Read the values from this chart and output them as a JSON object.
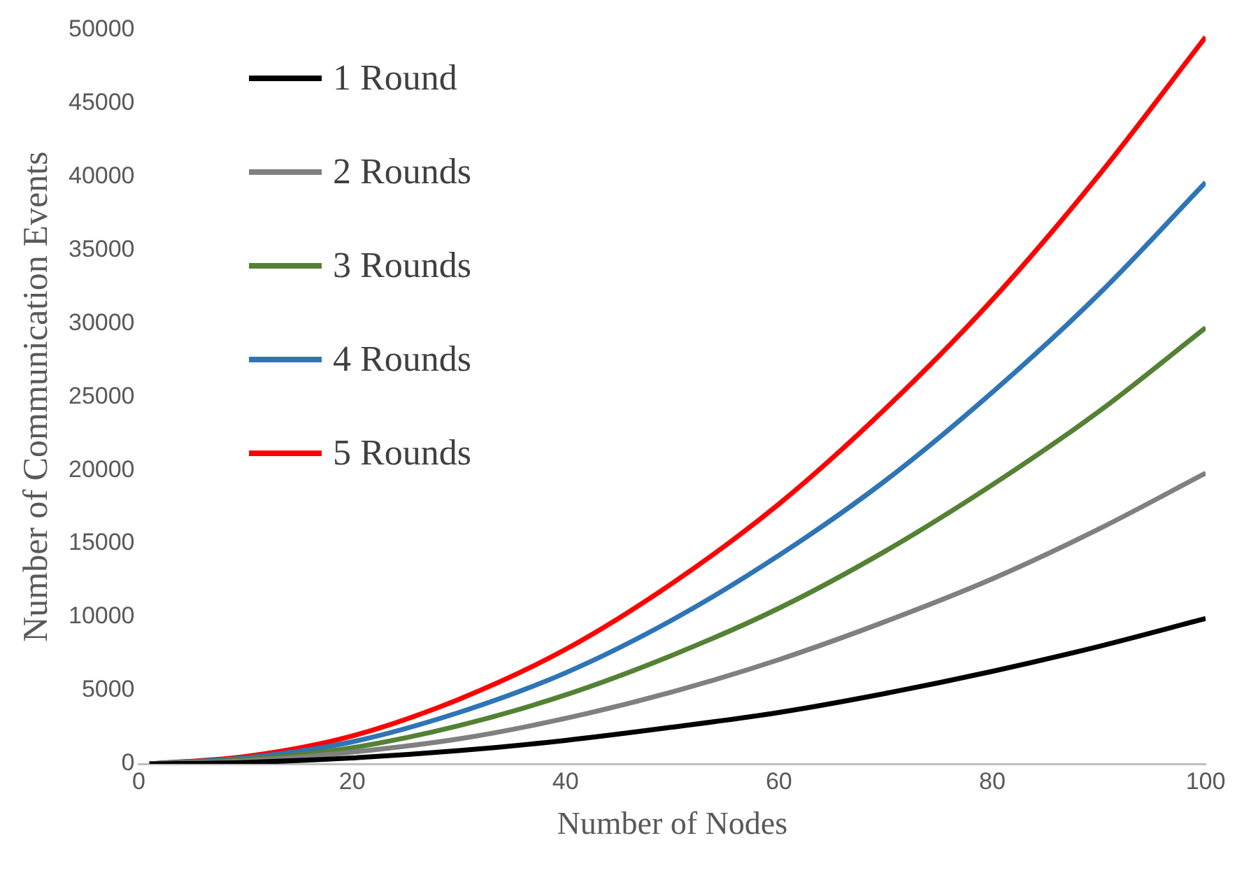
{
  "chart_data": {
    "type": "line",
    "xlabel": "Number of Nodes",
    "ylabel": "Number of Communication Events",
    "x": [
      1,
      10,
      20,
      30,
      40,
      50,
      60,
      70,
      80,
      90,
      100
    ],
    "series": [
      {
        "name": "1 Round",
        "color": "#000000",
        "values": [
          0,
          100,
          400,
          900,
          1600,
          2500,
          3500,
          4800,
          6300,
          8000,
          9900
        ]
      },
      {
        "name": "2 Rounds",
        "color": "#808080",
        "values": [
          0,
          200,
          800,
          1700,
          3100,
          4900,
          7100,
          9700,
          12600,
          16000,
          19800
        ]
      },
      {
        "name": "3 Rounds",
        "color": "#548235",
        "values": [
          0,
          300,
          1100,
          2600,
          4700,
          7400,
          10600,
          14500,
          19000,
          24000,
          29700
        ]
      },
      {
        "name": "4 Rounds",
        "color": "#2e75b6",
        "values": [
          0,
          400,
          1500,
          3500,
          6200,
          9800,
          14200,
          19300,
          25300,
          32000,
          39600
        ]
      },
      {
        "name": "5 Rounds",
        "color": "#ff0000",
        "values": [
          0,
          500,
          1900,
          4400,
          7800,
          12300,
          17700,
          24200,
          31600,
          40100,
          49500
        ]
      }
    ],
    "xlim": [
      0,
      100
    ],
    "xticks": [
      0,
      20,
      40,
      60,
      80,
      100
    ],
    "ylim": [
      0,
      50000
    ],
    "yticks": [
      0,
      5000,
      10000,
      15000,
      20000,
      25000,
      30000,
      35000,
      40000,
      45000,
      50000
    ],
    "grid": false,
    "legend": "top left",
    "marker": "none",
    "line_style": "solid"
  }
}
